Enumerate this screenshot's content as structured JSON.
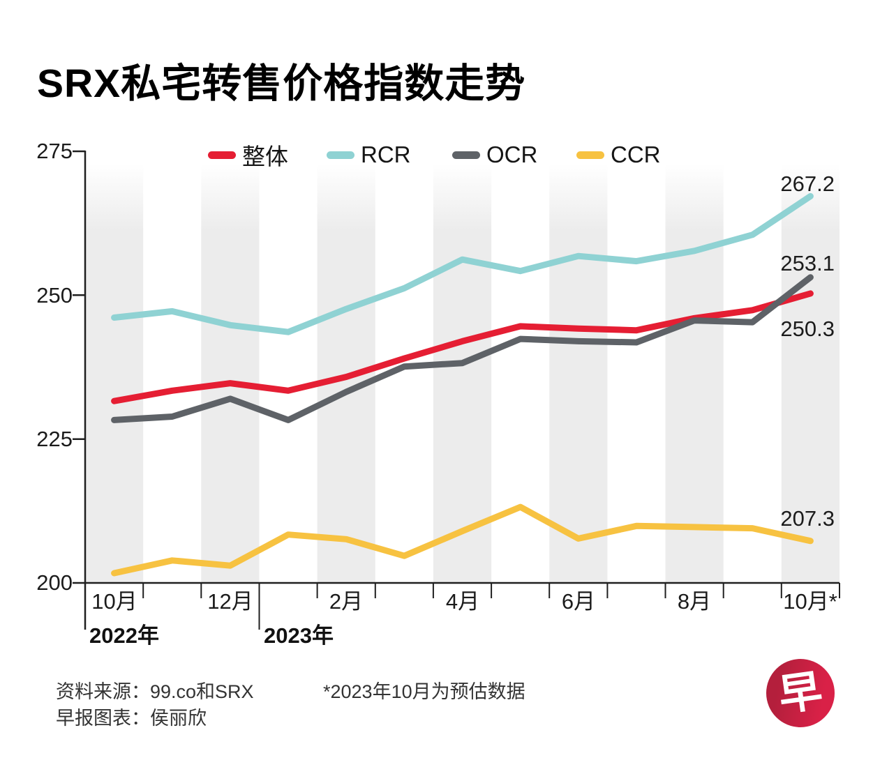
{
  "title": "SRX私宅转售价格指数走势",
  "legend": {
    "items": [
      {
        "label": "整体",
        "color": "#e51e33"
      },
      {
        "label": "RCR",
        "color": "#8fd2d3"
      },
      {
        "label": "OCR",
        "color": "#5e6267"
      },
      {
        "label": "CCR",
        "color": "#f7c241"
      }
    ]
  },
  "axes": {
    "y_tick_labels": [
      "275",
      "250",
      "225",
      "200"
    ],
    "x_tick_labels": [
      "10月",
      "12月",
      "2月",
      "4月",
      "6月",
      "8月",
      "10月*"
    ],
    "year_labels": [
      "2022年",
      "2023年"
    ]
  },
  "end_labels": [
    {
      "value": "267.2",
      "series": "RCR"
    },
    {
      "value": "253.1",
      "series": "OCR"
    },
    {
      "value": "250.3",
      "series": "整体"
    },
    {
      "value": "207.3",
      "series": "CCR"
    }
  ],
  "chart_data": {
    "type": "line",
    "title": "SRX私宅转售价格指数走势",
    "categories": [
      "2022年10月",
      "2022年11月",
      "2022年12月",
      "2023年1月",
      "2023年2月",
      "2023年3月",
      "2023年4月",
      "2023年5月",
      "2023年6月",
      "2023年7月",
      "2023年8月",
      "2023年9月",
      "2023年10月*"
    ],
    "series": [
      {
        "name": "整体",
        "id": "overall",
        "color": "#e51e33",
        "values": [
          231.6,
          233.4,
          234.7,
          233.4,
          235.8,
          239.0,
          242.0,
          244.6,
          244.2,
          243.9,
          246.0,
          247.4,
          250.3
        ]
      },
      {
        "name": "RCR",
        "id": "rcr",
        "color": "#8fd2d3",
        "values": [
          246.1,
          247.2,
          244.8,
          243.6,
          247.6,
          251.2,
          256.2,
          254.2,
          256.8,
          255.9,
          257.7,
          260.5,
          267.2
        ]
      },
      {
        "name": "OCR",
        "id": "ocr",
        "color": "#5e6267",
        "values": [
          228.3,
          228.9,
          232.0,
          228.3,
          233.2,
          237.6,
          238.2,
          242.4,
          242.0,
          241.8,
          245.6,
          245.3,
          253.1
        ]
      },
      {
        "name": "CCR",
        "id": "ccr",
        "color": "#f7c241",
        "values": [
          201.7,
          203.9,
          203.0,
          208.4,
          207.6,
          204.7,
          209.0,
          213.2,
          207.7,
          209.9,
          209.7,
          209.5,
          207.3
        ]
      }
    ],
    "ylim": [
      200,
      275
    ],
    "yticks": [
      200,
      225,
      250,
      275
    ],
    "xlabel": "",
    "ylabel": "",
    "legend_position": "top",
    "grid": "alternating vertical month bands",
    "band_color": "#ececec",
    "note": "*2023年10月为预估数据"
  },
  "footer": {
    "source": "资料来源：99.co和SRX",
    "credit": "早报图表：侯丽欣",
    "note": "*2023年10月为预估数据"
  },
  "logo": {
    "char": "早",
    "color": "#c81e41"
  }
}
